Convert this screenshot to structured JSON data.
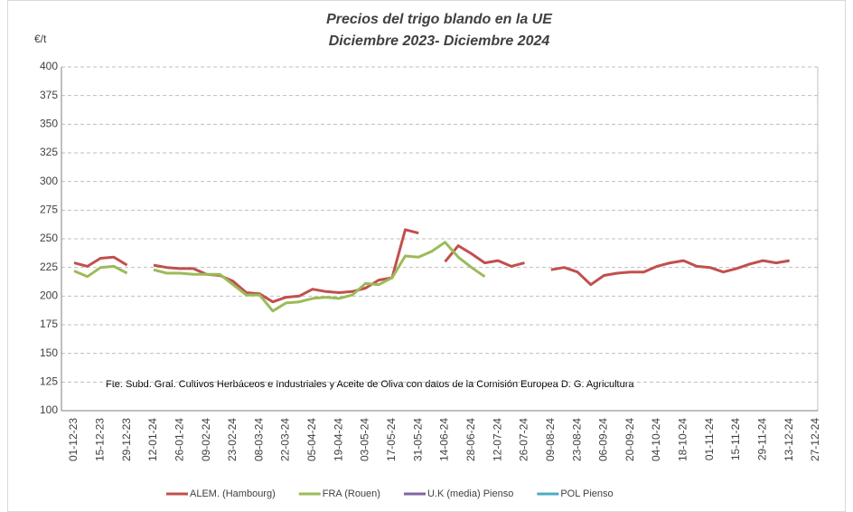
{
  "chart_data": {
    "type": "line",
    "title": "Precios del trigo blando en la UE",
    "subtitle": "Diciembre 2023- Diciembre 2024",
    "y_label": "€/t",
    "annotation": "Fte: Subd. Gral. Cultivos Herbáceos e Industriales y Aceite de Oliva con  datos de la Comisión Europea D.  G. Agricultura",
    "categories": [
      "01-12-23",
      null,
      "15-12-23",
      null,
      "29-12-23",
      null,
      "12-01-24",
      null,
      "26-01-24",
      null,
      "09-02-24",
      null,
      "23-02-24",
      null,
      "08-03-24",
      null,
      "22-03-24",
      null,
      "05-04-24",
      null,
      "19-04-24",
      null,
      "03-05-24",
      null,
      "17-05-24",
      null,
      "31-05-24",
      null,
      "14-06-24",
      null,
      "28-06-24",
      null,
      "12-07-24",
      null,
      "26-07-24",
      null,
      "09-08-24",
      null,
      "23-08-24",
      null,
      "06-09-24",
      null,
      "20-09-24",
      null,
      "04-10-24",
      null,
      "18-10-24",
      null,
      "01-11-24",
      null,
      "15-11-24",
      null,
      "29-11-24",
      null,
      "13-12-24",
      null,
      "27-12-24"
    ],
    "series": [
      {
        "name": "ALEM. (Hambourg)",
        "color": "#c0504d",
        "values": [
          229,
          226,
          233,
          234,
          227,
          null,
          227,
          225,
          224,
          224,
          219,
          218,
          213,
          203,
          202,
          195,
          199,
          200,
          206,
          204,
          203,
          204,
          207,
          214,
          216,
          258,
          255,
          null,
          230,
          244,
          237,
          229,
          231,
          226,
          229,
          null,
          223,
          225,
          221,
          210,
          218,
          220,
          221,
          221,
          226,
          229,
          231,
          226,
          225,
          221,
          224,
          228,
          231,
          229,
          231,
          null,
          null
        ]
      },
      {
        "name": "FRA (Rouen)",
        "color": "#9bbb59",
        "values": [
          222,
          217,
          225,
          226,
          220,
          null,
          223,
          220,
          220,
          219,
          219,
          219,
          210,
          201,
          201,
          187,
          194,
          195,
          198,
          199,
          198,
          201,
          211,
          210,
          216,
          235,
          234,
          239,
          247,
          234,
          225,
          217,
          null,
          null,
          null,
          null,
          null,
          null,
          null,
          null,
          null,
          null,
          null,
          null,
          null,
          null,
          null,
          null,
          null,
          null,
          null,
          null,
          null,
          null,
          null,
          null,
          null
        ]
      },
      {
        "name": "U.K (media) Pienso",
        "color": "#8064a2",
        "values": [
          null,
          null,
          null,
          null,
          null,
          null,
          null,
          null,
          null,
          null,
          null,
          null,
          null,
          null,
          null,
          null,
          null,
          null,
          null,
          null,
          null,
          null,
          null,
          null,
          null,
          null,
          null,
          null,
          null,
          null,
          null,
          null,
          null,
          null,
          null,
          null,
          null,
          null,
          null,
          null,
          null,
          null,
          null,
          null,
          null,
          null,
          null,
          null,
          null,
          null,
          null,
          null,
          null,
          null,
          null,
          null,
          null
        ]
      },
      {
        "name": "POL  Pienso",
        "color": "#4bacc6",
        "values": [
          null,
          null,
          null,
          null,
          null,
          null,
          null,
          null,
          null,
          null,
          null,
          null,
          null,
          null,
          null,
          null,
          null,
          null,
          null,
          null,
          null,
          null,
          null,
          null,
          null,
          null,
          null,
          null,
          null,
          null,
          null,
          null,
          null,
          null,
          null,
          null,
          null,
          null,
          null,
          null,
          null,
          null,
          null,
          null,
          null,
          null,
          null,
          null,
          null,
          null,
          null,
          null,
          null,
          null,
          null,
          null,
          null
        ]
      }
    ],
    "ylim": [
      100,
      400
    ],
    "yticks": [
      100,
      125,
      150,
      175,
      200,
      225,
      250,
      275,
      300,
      325,
      350,
      375,
      400
    ],
    "grid": true,
    "legend": "bottom"
  }
}
